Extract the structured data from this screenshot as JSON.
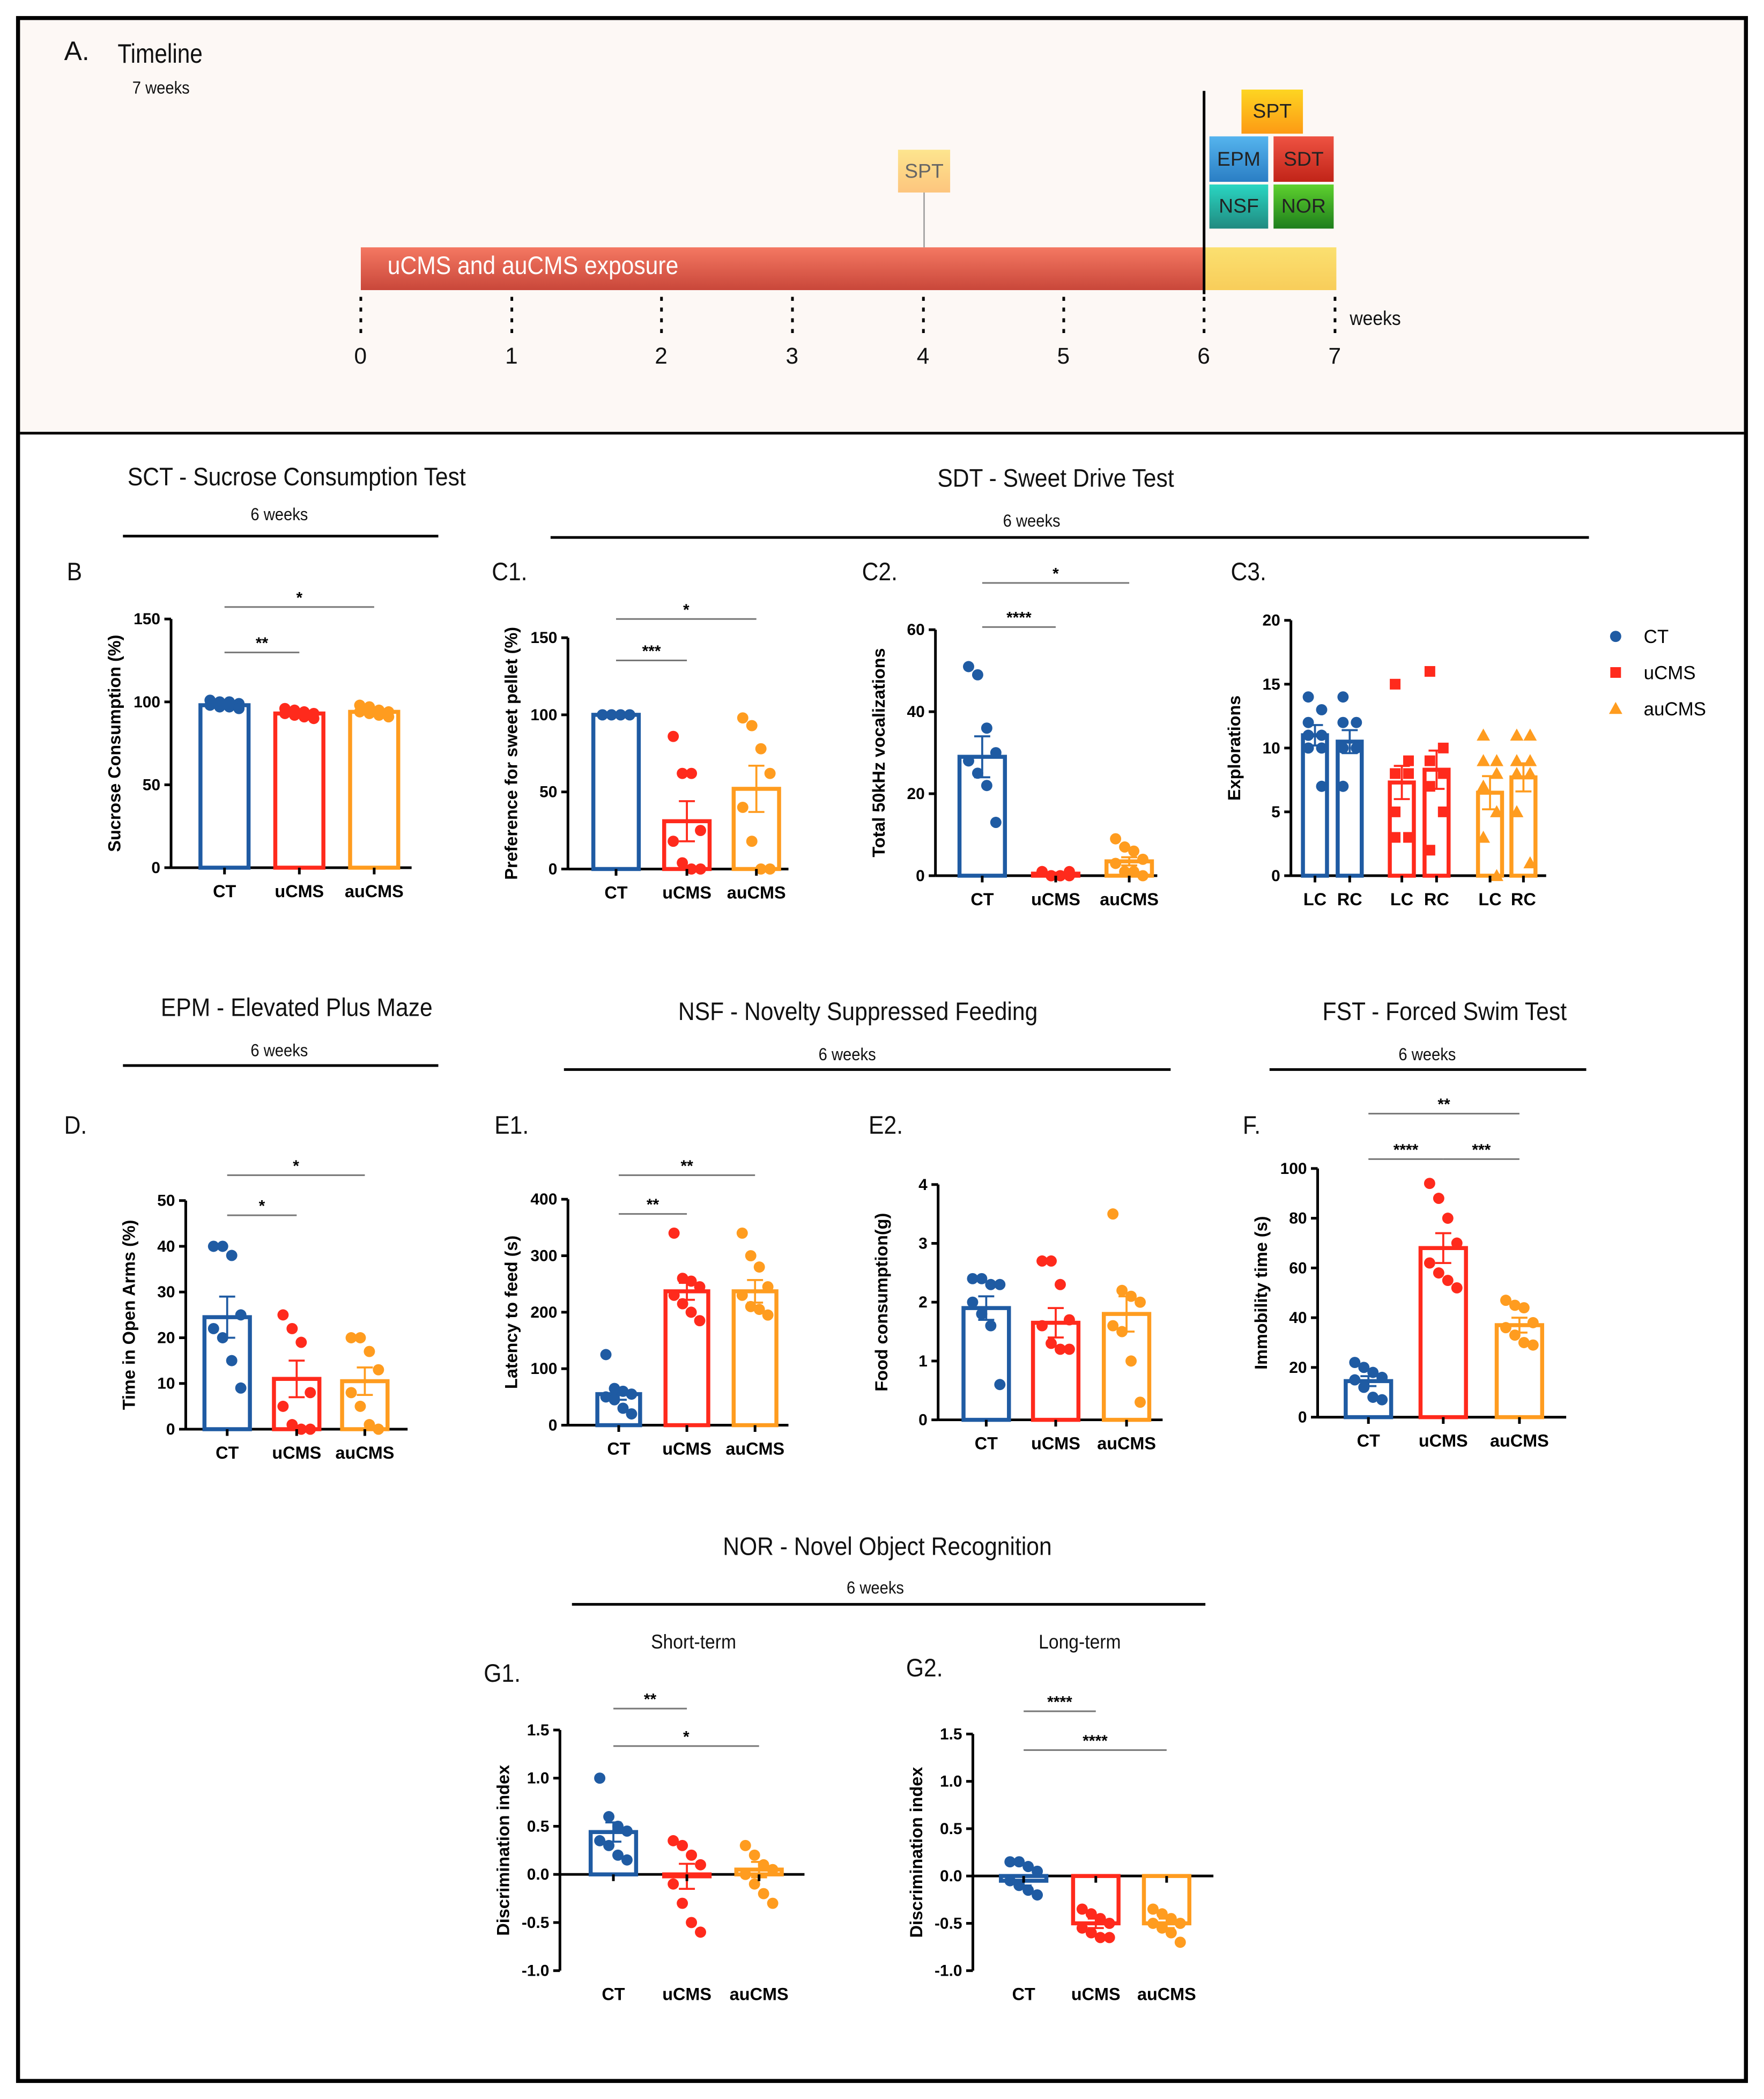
{
  "timeline": {
    "label": "A.",
    "title": "Timeline",
    "duration": "7 weeks",
    "bar_label": "uCMS and auCMS exposure",
    "unit": "weeks",
    "ticks": [
      "0",
      "1",
      "2",
      "3",
      "4",
      "5",
      "6",
      "7"
    ],
    "boxes": {
      "spt_mid": "SPT",
      "spt": "SPT",
      "epm": "EPM",
      "sdt": "SDT",
      "nsf": "NSF",
      "nor": "NOR"
    }
  },
  "sections": {
    "sct": {
      "title": "SCT - Sucrose Consumption Test",
      "sub": "6 weeks"
    },
    "sdt": {
      "title": "SDT - Sweet Drive Test",
      "sub": "6 weeks"
    },
    "epm": {
      "title": "EPM - Elevated Plus Maze",
      "sub": "6 weeks"
    },
    "nsf": {
      "title": "NSF - Novelty Suppressed Feeding",
      "sub": "6 weeks"
    },
    "fst": {
      "title": "FST - Forced Swim Test",
      "sub": "6 weeks"
    },
    "nor": {
      "title": "NOR - Novel Object Recognition",
      "sub": "6 weeks",
      "short": "Short-term",
      "long": "Long-term"
    }
  },
  "colors": {
    "CT": "#1f5ba3",
    "uCMS": "#ff2a1c",
    "auCMS": "#ff9c1f",
    "timeline_red": "#d9503c",
    "timeline_yellow": "#fbd660"
  },
  "legend": [
    {
      "label": "CT",
      "shape": "circle"
    },
    {
      "label": "uCMS",
      "shape": "square"
    },
    {
      "label": "auCMS",
      "shape": "triangle"
    }
  ],
  "chart_data": [
    {
      "id": "B",
      "panel": "B",
      "type": "bar",
      "ylabel": "Sucrose Consumption (%)",
      "ylim": [
        0,
        150
      ],
      "yticks": [
        0,
        50,
        100,
        150
      ],
      "categories": [
        "CT",
        "uCMS",
        "auCMS"
      ],
      "series": [
        {
          "name": "CT",
          "mean": 98,
          "sem": 1,
          "points": [
            101,
            100,
            100,
            99,
            98,
            97,
            97,
            96
          ]
        },
        {
          "name": "uCMS",
          "mean": 93,
          "sem": 1,
          "points": [
            96,
            95,
            94,
            93,
            93,
            92,
            91,
            90
          ]
        },
        {
          "name": "auCMS",
          "mean": 94,
          "sem": 1,
          "points": [
            98,
            97,
            95,
            94,
            94,
            93,
            92,
            91
          ]
        }
      ],
      "significance": [
        {
          "from": 0,
          "to": 1,
          "label": "**"
        },
        {
          "from": 0,
          "to": 2,
          "label": "*"
        }
      ]
    },
    {
      "id": "C1",
      "panel": "C1.",
      "type": "bar",
      "ylabel": "Preference for sweet pellet (%)",
      "ylim": [
        0,
        150
      ],
      "yticks": [
        0,
        50,
        100,
        150
      ],
      "categories": [
        "CT",
        "uCMS",
        "auCMS"
      ],
      "series": [
        {
          "name": "CT",
          "mean": 100,
          "sem": 0,
          "points": [
            100,
            100,
            100,
            100,
            100,
            100,
            100,
            100
          ]
        },
        {
          "name": "uCMS",
          "mean": 31,
          "sem": 13,
          "points": [
            86,
            62,
            62,
            25,
            18,
            4,
            0,
            0
          ]
        },
        {
          "name": "auCMS",
          "mean": 52,
          "sem": 15,
          "points": [
            98,
            93,
            78,
            62,
            40,
            18,
            0,
            0
          ]
        }
      ],
      "significance": [
        {
          "from": 0,
          "to": 1,
          "label": "***"
        },
        {
          "from": 0,
          "to": 2,
          "label": "*"
        }
      ]
    },
    {
      "id": "C2",
      "panel": "C2.",
      "type": "bar",
      "ylabel": "Total 50kHz vocalizations",
      "ylim": [
        0,
        60
      ],
      "yticks": [
        0,
        20,
        40,
        60
      ],
      "categories": [
        "CT",
        "uCMS",
        "auCMS"
      ],
      "series": [
        {
          "name": "CT",
          "mean": 29,
          "sem": 5,
          "points": [
            51,
            49,
            36,
            30,
            28,
            25,
            22,
            13
          ]
        },
        {
          "name": "uCMS",
          "mean": 0.5,
          "sem": 0.2,
          "points": [
            1,
            0,
            0,
            0,
            1,
            0,
            0,
            1
          ]
        },
        {
          "name": "auCMS",
          "mean": 3.5,
          "sem": 1,
          "points": [
            9,
            7,
            6,
            4,
            3,
            1,
            1,
            0
          ]
        }
      ],
      "significance": [
        {
          "from": 0,
          "to": 1,
          "label": "****"
        },
        {
          "from": 0,
          "to": 2,
          "label": "*"
        }
      ]
    },
    {
      "id": "C3",
      "panel": "C3.",
      "type": "bar",
      "ylabel": "Explorations",
      "ylim": [
        0,
        20
      ],
      "yticks": [
        0,
        5,
        10,
        15,
        20
      ],
      "categories": [
        "LC",
        "RC",
        "LC",
        "RC",
        "LC",
        "RC"
      ],
      "series": [
        {
          "name": "CT",
          "bars": [
            {
              "cat": "LC",
              "mean": 11,
              "sem": 0.8,
              "points": [
                14,
                13,
                12,
                11,
                11,
                10,
                10,
                7
              ]
            },
            {
              "cat": "RC",
              "mean": 10.5,
              "sem": 0.9,
              "points": [
                14,
                12,
                12,
                10,
                10,
                10,
                7
              ]
            }
          ]
        },
        {
          "name": "uCMS",
          "bars": [
            {
              "cat": "LC",
              "mean": 7.3,
              "sem": 1.3,
              "points": [
                15,
                9,
                8,
                8,
                5,
                3,
                3
              ]
            },
            {
              "cat": "RC",
              "mean": 8.3,
              "sem": 1.5,
              "points": [
                16,
                10,
                9,
                8,
                7,
                5,
                2
              ]
            }
          ]
        },
        {
          "name": "auCMS",
          "bars": [
            {
              "cat": "LC",
              "mean": 6.5,
              "sem": 1.3,
              "points": [
                11,
                9,
                9,
                8,
                7,
                5,
                3,
                0
              ]
            },
            {
              "cat": "RC",
              "mean": 7.7,
              "sem": 1.1,
              "points": [
                11,
                11,
                9,
                9,
                8,
                8,
                5,
                1
              ]
            }
          ]
        }
      ],
      "significance": []
    },
    {
      "id": "D",
      "panel": "D.",
      "type": "bar",
      "ylabel": "Time in Open Arms (%)",
      "ylim": [
        0,
        50
      ],
      "yticks": [
        0,
        10,
        20,
        30,
        40,
        50
      ],
      "categories": [
        "CT",
        "uCMS",
        "auCMS"
      ],
      "series": [
        {
          "name": "CT",
          "mean": 24.5,
          "sem": 4.5,
          "points": [
            40,
            40,
            38,
            25,
            22,
            20,
            15,
            9
          ]
        },
        {
          "name": "uCMS",
          "mean": 11,
          "sem": 4,
          "points": [
            25,
            22,
            19,
            8,
            5,
            1,
            0,
            0
          ]
        },
        {
          "name": "auCMS",
          "mean": 10.5,
          "sem": 3,
          "points": [
            20,
            20,
            17,
            13,
            8,
            5,
            1,
            0
          ]
        }
      ],
      "significance": [
        {
          "from": 0,
          "to": 1,
          "label": "*"
        },
        {
          "from": 0,
          "to": 2,
          "label": "*"
        }
      ]
    },
    {
      "id": "E1",
      "panel": "E1.",
      "type": "bar",
      "ylabel": "Latency to feed (s)",
      "ylim": [
        0,
        400
      ],
      "yticks": [
        0,
        100,
        200,
        300,
        400
      ],
      "categories": [
        "CT",
        "uCMS",
        "auCMS"
      ],
      "series": [
        {
          "name": "CT",
          "mean": 55,
          "sem": 10,
          "points": [
            125,
            65,
            60,
            55,
            50,
            45,
            30,
            20
          ]
        },
        {
          "name": "uCMS",
          "mean": 237,
          "sem": 15,
          "points": [
            340,
            260,
            255,
            245,
            230,
            215,
            200,
            185
          ]
        },
        {
          "name": "auCMS",
          "mean": 237,
          "sem": 20,
          "points": [
            340,
            300,
            280,
            245,
            230,
            210,
            205,
            195
          ]
        }
      ],
      "significance": [
        {
          "from": 0,
          "to": 1,
          "label": "**"
        },
        {
          "from": 0,
          "to": 2,
          "label": "**"
        }
      ]
    },
    {
      "id": "E2",
      "panel": "E2.",
      "type": "bar",
      "ylabel": "Food consumption(g)",
      "ylim": [
        0,
        4
      ],
      "yticks": [
        0,
        1,
        2,
        3,
        4
      ],
      "categories": [
        "CT",
        "uCMS",
        "auCMS"
      ],
      "series": [
        {
          "name": "CT",
          "mean": 1.9,
          "sem": 0.2,
          "points": [
            2.4,
            2.4,
            2.3,
            2.3,
            2.0,
            1.8,
            1.6,
            0.6
          ]
        },
        {
          "name": "uCMS",
          "mean": 1.65,
          "sem": 0.25,
          "points": [
            2.7,
            2.7,
            2.3,
            1.7,
            1.6,
            1.3,
            1.2,
            1.2
          ]
        },
        {
          "name": "auCMS",
          "mean": 1.8,
          "sem": 0.3,
          "points": [
            3.5,
            2.2,
            2.1,
            2.0,
            1.6,
            1.5,
            1.0,
            0.3
          ]
        }
      ],
      "significance": []
    },
    {
      "id": "F",
      "panel": "F.",
      "type": "bar",
      "ylabel": "Immobility time (s)",
      "ylim": [
        0,
        100
      ],
      "yticks": [
        0,
        20,
        40,
        60,
        80,
        100
      ],
      "categories": [
        "CT",
        "uCMS",
        "auCMS"
      ],
      "series": [
        {
          "name": "CT",
          "mean": 14.5,
          "sem": 2,
          "points": [
            22,
            20,
            18,
            16,
            15,
            12,
            8,
            7
          ]
        },
        {
          "name": "uCMS",
          "mean": 68,
          "sem": 6,
          "points": [
            94,
            88,
            80,
            70,
            62,
            58,
            55,
            52
          ]
        },
        {
          "name": "auCMS",
          "mean": 37,
          "sem": 3,
          "points": [
            47,
            45,
            44,
            38,
            36,
            33,
            30,
            29
          ]
        }
      ],
      "significance": [
        {
          "from": 0,
          "to": 1,
          "label": "****"
        },
        {
          "from": 1,
          "to": 2,
          "label": "***"
        },
        {
          "from": 0,
          "to": 2,
          "label": "**"
        }
      ]
    },
    {
      "id": "G1",
      "panel": "G1.",
      "type": "bar",
      "ylabel": "Discrimination index",
      "ylim": [
        -1,
        1.5
      ],
      "yticks": [
        -1.0,
        -0.5,
        0.0,
        0.5,
        1.0,
        1.5
      ],
      "categories": [
        "CT",
        "uCMS",
        "auCMS"
      ],
      "series": [
        {
          "name": "CT",
          "mean": 0.44,
          "sem": 0.1,
          "points": [
            1.0,
            0.6,
            0.5,
            0.45,
            0.35,
            0.3,
            0.2,
            0.15
          ]
        },
        {
          "name": "uCMS",
          "mean": -0.02,
          "sem": 0.13,
          "points": [
            0.35,
            0.3,
            0.2,
            0.1,
            -0.1,
            -0.3,
            -0.5,
            -0.6
          ]
        },
        {
          "name": "auCMS",
          "mean": 0.05,
          "sem": 0.08,
          "points": [
            0.3,
            0.2,
            0.1,
            0.05,
            0,
            -0.1,
            -0.2,
            -0.3
          ]
        }
      ],
      "significance": [
        {
          "from": 0,
          "to": 1,
          "label": "**"
        },
        {
          "from": 0,
          "to": 2,
          "label": "*"
        }
      ]
    },
    {
      "id": "G2",
      "panel": "G2.",
      "type": "bar",
      "ylabel": "Discrimination index",
      "ylim": [
        -1,
        1.5
      ],
      "yticks": [
        -1.0,
        -0.5,
        0.0,
        0.5,
        1.0,
        1.5
      ],
      "categories": [
        "CT",
        "uCMS",
        "auCMS"
      ],
      "series": [
        {
          "name": "CT",
          "mean": -0.05,
          "sem": 0.05,
          "points": [
            0.15,
            0.15,
            0.1,
            0.05,
            -0.05,
            -0.1,
            -0.15,
            -0.2
          ]
        },
        {
          "name": "uCMS",
          "mean": -0.5,
          "sem": 0.05,
          "points": [
            -0.35,
            -0.4,
            -0.45,
            -0.5,
            -0.55,
            -0.6,
            -0.65,
            -0.65
          ]
        },
        {
          "name": "auCMS",
          "mean": -0.5,
          "sem": 0.05,
          "points": [
            -0.35,
            -0.4,
            -0.45,
            -0.5,
            -0.5,
            -0.55,
            -0.6,
            -0.7
          ]
        }
      ],
      "significance": [
        {
          "from": 0,
          "to": 1,
          "label": "****"
        },
        {
          "from": 0,
          "to": 2,
          "label": "****"
        }
      ]
    }
  ]
}
